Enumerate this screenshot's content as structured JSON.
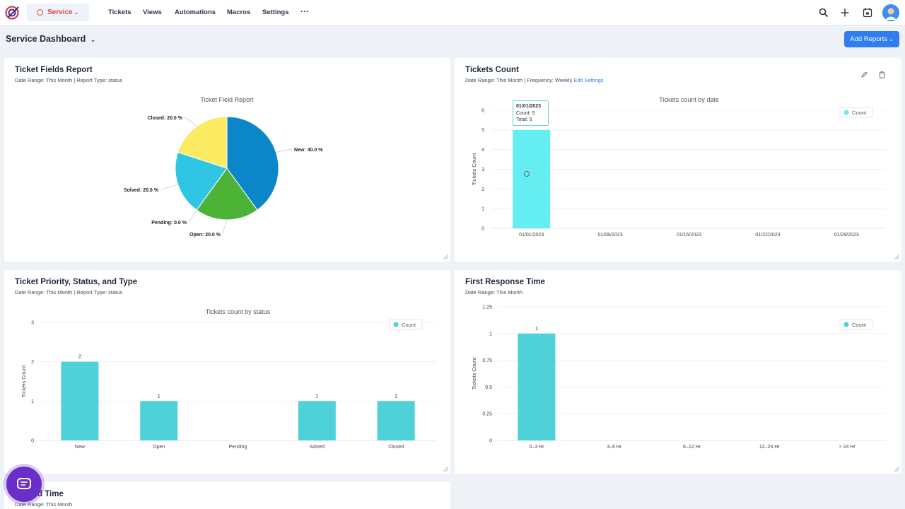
{
  "topnav": {
    "module": "Service",
    "items": [
      "Tickets",
      "Views",
      "Automations",
      "Macros",
      "Settings"
    ],
    "more": "···"
  },
  "header": {
    "title": "Service Dashboard",
    "add_reports_label": "Add Reports",
    "chevron": "⌄"
  },
  "cards": {
    "ticket_fields": {
      "title": "Ticket Fields Report",
      "subtitle": "Date Range: This Month | Report Type: status"
    },
    "tickets_count": {
      "title": "Tickets Count",
      "subtitle": "Date Range: This Month | Frequency: Weekly",
      "link": "Edit Settings",
      "tooltip": {
        "date": "01/01/2023",
        "count": "Count: 5",
        "total": "Total: 5"
      }
    },
    "priority_status": {
      "title": "Ticket Priority, Status, and Type",
      "subtitle": "Date Range: This Month | Report Type: status"
    },
    "first_response": {
      "title": "First Response Time",
      "subtitle": "Date Range: This Month"
    },
    "resolved_time": {
      "title": "d Time",
      "subtitle": "Date Range: This Month"
    }
  },
  "colors": {
    "accent": "#2f7ef0",
    "teal": "#4fd1d9",
    "cyan_bar": "#64eef2",
    "pie_new": "#0b87c9",
    "pie_open": "#4db336",
    "pie_solved": "#2ec6e2",
    "pie_closed": "#fbeb63"
  },
  "chart_data": [
    {
      "id": "ticket_field_report",
      "type": "pie",
      "title": "Ticket Field Report",
      "slices": [
        {
          "label": "New: 40.0 %",
          "value": 40,
          "color": "#0b87c9"
        },
        {
          "label": "Open: 20.0 %",
          "value": 20,
          "color": "#4db336"
        },
        {
          "label": "Pending: 0.0 %",
          "value": 0,
          "color": "#aaaaaa"
        },
        {
          "label": "Solved: 20.0 %",
          "value": 20,
          "color": "#2ec6e2"
        },
        {
          "label": "Closed: 20.0 %",
          "value": 20,
          "color": "#fbeb63"
        }
      ]
    },
    {
      "id": "tickets_count_by_date",
      "type": "bar",
      "title": "Tickets count by date",
      "ylabel": "Tickets Count",
      "categories": [
        "01/01/2023",
        "01/08/2023",
        "01/15/2023",
        "01/22/2023",
        "01/29/2023"
      ],
      "series": [
        {
          "name": "Count",
          "values": [
            5,
            0,
            0,
            0,
            0
          ]
        }
      ],
      "yticks": [
        "0",
        "1",
        "2",
        "3",
        "4",
        "5",
        "6"
      ],
      "ylim": [
        0,
        6
      ],
      "legend": "top-right",
      "show_labels": false
    },
    {
      "id": "tickets_count_by_status",
      "type": "bar",
      "title": "Tickets count by status",
      "ylabel": "Tickets Count",
      "categories": [
        "New",
        "Open",
        "Pending",
        "Solved",
        "Closed"
      ],
      "series": [
        {
          "name": "Count",
          "values": [
            2,
            1,
            0,
            1,
            1
          ]
        }
      ],
      "yticks": [
        "0",
        "1",
        "2",
        "3"
      ],
      "ylim": [
        0,
        3
      ],
      "legend": "top-right",
      "show_labels": true
    },
    {
      "id": "first_response_time",
      "type": "bar",
      "title": "",
      "ylabel": "Tickets Count",
      "categories": [
        "0–3 Hr",
        "3–6 Hr",
        "6–12 Hr",
        "12–24 Hr",
        "> 24 Hr"
      ],
      "series": [
        {
          "name": "Count",
          "values": [
            1,
            0,
            0,
            0,
            0
          ]
        }
      ],
      "yticks": [
        "0",
        "0.25",
        "0.5",
        "0.75",
        "1",
        "1.25"
      ],
      "ylim": [
        0,
        1.25
      ],
      "legend": "top-right",
      "show_labels": true
    }
  ]
}
